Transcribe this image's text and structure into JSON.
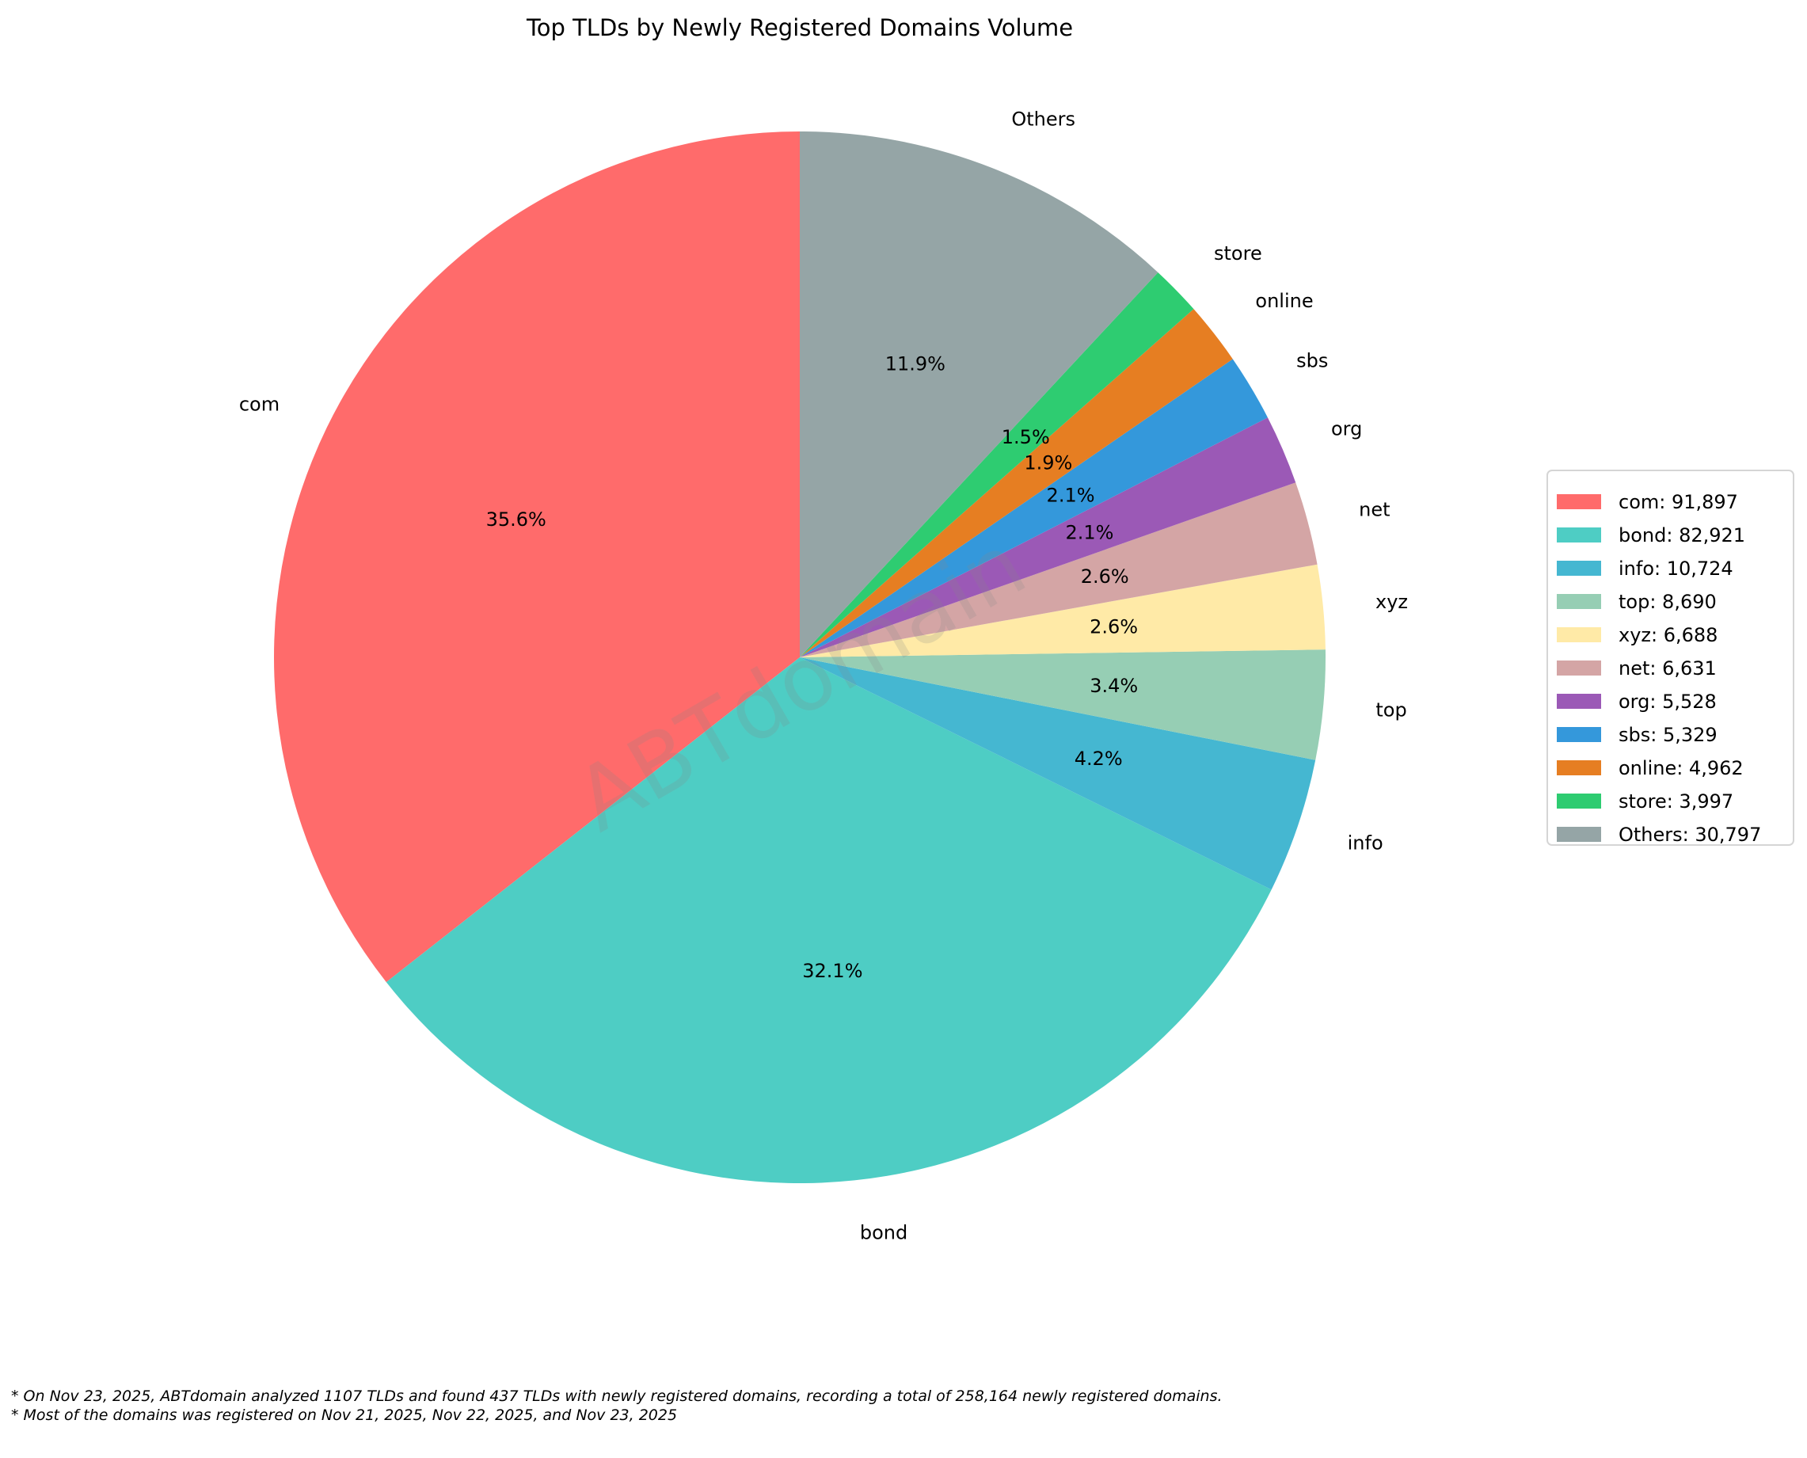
{
  "chart_data": {
    "type": "pie",
    "title": "Top TLDs by Newly Registered Domains Volume",
    "start_angle_deg": 90,
    "direction": "counterclockwise",
    "legend_position": "right",
    "watermark": "ABTdomain",
    "slices": [
      {
        "label": "com",
        "value": 91897,
        "pct_label": "35.6%",
        "legend": "com: 91,897",
        "color": "#FF6B6B"
      },
      {
        "label": "bond",
        "value": 82921,
        "pct_label": "32.1%",
        "legend": "bond: 82,921",
        "color": "#4ECDC4"
      },
      {
        "label": "info",
        "value": 10724,
        "pct_label": "4.2%",
        "legend": "info: 10,724",
        "color": "#45B7D1"
      },
      {
        "label": "top",
        "value": 8690,
        "pct_label": "3.4%",
        "legend": "top: 8,690",
        "color": "#96CEB4"
      },
      {
        "label": "xyz",
        "value": 6688,
        "pct_label": "2.6%",
        "legend": "xyz: 6,688",
        "color": "#FFEAA7"
      },
      {
        "label": "net",
        "value": 6631,
        "pct_label": "2.6%",
        "legend": "net: 6,631",
        "color": "#D4A5A5"
      },
      {
        "label": "org",
        "value": 5528,
        "pct_label": "2.1%",
        "legend": "org: 5,528",
        "color": "#9B59B6"
      },
      {
        "label": "sbs",
        "value": 5329,
        "pct_label": "2.1%",
        "legend": "sbs: 5,329",
        "color": "#3498DB"
      },
      {
        "label": "online",
        "value": 4962,
        "pct_label": "1.9%",
        "legend": "online: 4,962",
        "color": "#E67E22"
      },
      {
        "label": "store",
        "value": 3997,
        "pct_label": "1.5%",
        "legend": "store: 3,997",
        "color": "#2ECC71"
      },
      {
        "label": "Others",
        "value": 30797,
        "pct_label": "11.9%",
        "legend": "Others: 30,797",
        "color": "#95A5A6"
      }
    ]
  },
  "footnotes": [
    "* On Nov 23, 2025, ABTdomain analyzed 1107 TLDs and found 437 TLDs with newly registered domains, recording a total of 258,164 newly registered domains.",
    "* Most of the domains was registered on Nov 21, 2025, Nov 22, 2025, and Nov 23, 2025"
  ]
}
